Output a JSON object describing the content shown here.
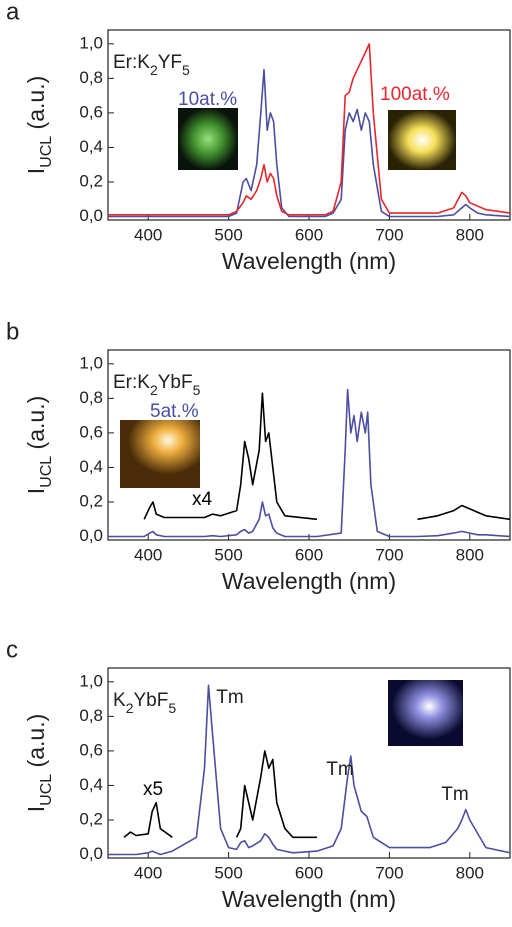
{
  "chart_data": [
    {
      "type": "line",
      "panel": "a",
      "label_parts": [
        "Er:K",
        "2",
        "YF",
        "5"
      ],
      "xlabel": "Wavelength (nm)",
      "ylabel_parts": [
        "I",
        "UCL",
        " (a.u.)"
      ],
      "xlim": [
        350,
        850
      ],
      "ylim": [
        -0.02,
        1.08
      ],
      "xticks": [
        400,
        500,
        600,
        700,
        800
      ],
      "yticks": [
        {
          "value": 0,
          "label": "0,0"
        },
        {
          "value": 0.2,
          "label": "0,2"
        },
        {
          "value": 0.4,
          "label": "0,4"
        },
        {
          "value": 0.6,
          "label": "0,6"
        },
        {
          "value": 0.8,
          "label": "0,8"
        },
        {
          "value": 1,
          "label": "1,0"
        }
      ],
      "x": [
        350,
        500,
        510,
        518,
        522,
        528,
        535,
        540,
        544,
        548,
        552,
        556,
        560,
        566,
        575,
        620,
        630,
        640,
        645,
        650,
        655,
        660,
        665,
        670,
        675,
        680,
        690,
        700,
        760,
        780,
        790,
        795,
        800,
        810,
        820,
        850
      ],
      "series": [
        {
          "name": "10at.%",
          "color": "#4a4fa0",
          "values": [
            0,
            0,
            0.02,
            0.2,
            0.22,
            0.15,
            0.3,
            0.6,
            0.85,
            0.5,
            0.6,
            0.55,
            0.3,
            0.05,
            0,
            0,
            0.02,
            0.1,
            0.5,
            0.6,
            0.55,
            0.62,
            0.5,
            0.6,
            0.55,
            0.3,
            0.03,
            0,
            0,
            0.01,
            0.05,
            0.07,
            0.05,
            0.02,
            0.01,
            0
          ]
        },
        {
          "name": "100at.%",
          "color": "#e8262b",
          "values": [
            0.01,
            0.01,
            0.03,
            0.08,
            0.12,
            0.1,
            0.15,
            0.22,
            0.3,
            0.2,
            0.25,
            0.22,
            0.12,
            0.03,
            0.01,
            0.01,
            0.03,
            0.2,
            0.7,
            0.72,
            0.8,
            0.85,
            0.9,
            0.95,
            1.0,
            0.6,
            0.1,
            0.02,
            0.02,
            0.05,
            0.14,
            0.12,
            0.08,
            0.06,
            0.04,
            0.02
          ]
        }
      ]
    },
    {
      "type": "line",
      "panel": "b",
      "label_parts": [
        "Er:K",
        "2",
        "YbF",
        "5"
      ],
      "xlabel": "Wavelength (nm)",
      "ylabel_parts": [
        "I",
        "UCL",
        " (a.u.)"
      ],
      "xlim": [
        350,
        850
      ],
      "ylim": [
        -0.02,
        1.08
      ],
      "xticks": [
        400,
        500,
        600,
        700,
        800
      ],
      "yticks": [
        {
          "value": 0,
          "label": "0,0"
        },
        {
          "value": 0.2,
          "label": "0,2"
        },
        {
          "value": 0.4,
          "label": "0,4"
        },
        {
          "value": 0.6,
          "label": "0,6"
        },
        {
          "value": 0.8,
          "label": "0,8"
        },
        {
          "value": 1,
          "label": "1,0"
        }
      ],
      "x": [
        350,
        395,
        402,
        406,
        410,
        420,
        470,
        480,
        490,
        510,
        515,
        520,
        525,
        530,
        538,
        542,
        546,
        550,
        555,
        560,
        570,
        610,
        640,
        645,
        648,
        652,
        656,
        660,
        665,
        670,
        673,
        677,
        685,
        700,
        735,
        760,
        780,
        790,
        800,
        810,
        820,
        850
      ],
      "series": [
        {
          "name": "5at.%",
          "color": "#4a4fa0",
          "values": [
            0,
            0,
            0.02,
            0.03,
            0.01,
            0,
            0,
            0.005,
            0,
            0.01,
            0.03,
            0.04,
            0.02,
            0.03,
            0.1,
            0.2,
            0.12,
            0.13,
            0.05,
            0.02,
            0,
            0,
            0.02,
            0.5,
            0.85,
            0.6,
            0.7,
            0.55,
            0.72,
            0.6,
            0.72,
            0.3,
            0.03,
            0,
            0,
            0.005,
            0.02,
            0.03,
            0.02,
            0.01,
            0.01,
            0
          ]
        },
        {
          "name": "x4",
          "color": "#000000",
          "values": [
            null,
            0.1,
            0.17,
            0.2,
            0.13,
            0.11,
            0.11,
            0.13,
            0.12,
            0.15,
            0.3,
            0.55,
            0.45,
            0.3,
            0.5,
            0.83,
            0.55,
            0.6,
            0.4,
            0.2,
            0.12,
            0.1,
            null,
            null,
            null,
            null,
            null,
            null,
            null,
            null,
            null,
            null,
            null,
            null,
            0.1,
            0.12,
            0.15,
            0.18,
            0.16,
            0.14,
            0.12,
            0.1
          ]
        }
      ]
    },
    {
      "type": "line",
      "panel": "c",
      "label_parts": [
        "K",
        "2",
        "YbF",
        "5"
      ],
      "xlabel": "Wavelength (nm)",
      "ylabel_parts": [
        "I",
        "UCL",
        " (a.u.)"
      ],
      "xlim": [
        350,
        850
      ],
      "ylim": [
        -0.02,
        1.08
      ],
      "xticks": [
        400,
        500,
        600,
        700,
        800
      ],
      "yticks": [
        {
          "value": 0,
          "label": "0,0"
        },
        {
          "value": 0.2,
          "label": "0,2"
        },
        {
          "value": 0.4,
          "label": "0,4"
        },
        {
          "value": 0.6,
          "label": "0,6"
        },
        {
          "value": 0.8,
          "label": "0,8"
        },
        {
          "value": 1,
          "label": "1,0"
        }
      ],
      "annotations": [
        "Tm",
        "Tm",
        "Tm"
      ],
      "x": [
        350,
        370,
        378,
        385,
        400,
        405,
        410,
        415,
        430,
        460,
        470,
        475,
        480,
        490,
        500,
        510,
        515,
        520,
        525,
        530,
        540,
        545,
        550,
        555,
        560,
        570,
        580,
        610,
        630,
        640,
        648,
        652,
        656,
        665,
        672,
        680,
        700,
        750,
        770,
        785,
        790,
        795,
        800,
        820,
        850
      ],
      "series": [
        {
          "color": "#4a4fa0",
          "values": [
            0,
            0,
            0,
            0,
            0.01,
            0.02,
            0.01,
            0,
            0.02,
            0.1,
            0.5,
            0.98,
            0.7,
            0.15,
            0.04,
            0.03,
            0.07,
            0.08,
            0.04,
            0.05,
            0.08,
            0.12,
            0.1,
            0.06,
            0.03,
            0.02,
            0.01,
            0.02,
            0.05,
            0.15,
            0.45,
            0.57,
            0.4,
            0.25,
            0.22,
            0.1,
            0.04,
            0.04,
            0.07,
            0.15,
            0.2,
            0.26,
            0.2,
            0.04,
            0.01
          ]
        },
        {
          "name": "x5",
          "color": "#000000",
          "values": [
            null,
            0.1,
            0.13,
            0.11,
            0.12,
            0.25,
            0.3,
            0.15,
            0.1,
            null,
            null,
            null,
            null,
            null,
            null,
            0.1,
            0.15,
            0.4,
            0.3,
            0.2,
            0.45,
            0.6,
            0.5,
            0.55,
            0.3,
            0.15,
            0.1,
            0.1,
            null,
            null,
            null,
            null,
            null,
            null,
            null,
            null,
            null,
            null,
            null,
            null,
            null,
            null,
            null,
            null,
            null
          ]
        }
      ]
    }
  ]
}
